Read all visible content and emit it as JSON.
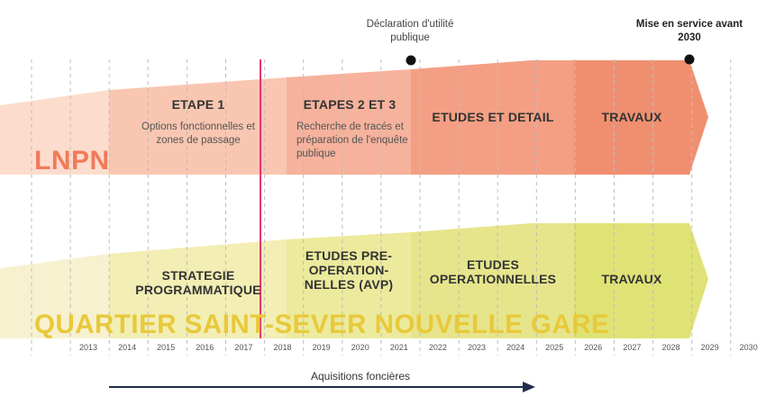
{
  "years": [
    "2013",
    "2014",
    "2015",
    "2016",
    "2017",
    "2018",
    "2019",
    "2020",
    "2021",
    "2022",
    "2023",
    "2024",
    "2025",
    "2026",
    "2027",
    "2028",
    "2029",
    "2030"
  ],
  "milestones": {
    "declaration": "Déclaration d'utilité publique",
    "mise_en_service": "Mise en service avant 2030"
  },
  "lnpn": {
    "label": "LNPN",
    "phases": [
      {
        "title": "ETAPE 1",
        "desc": "Options fonctionnelles et zones de passage"
      },
      {
        "title": "ETAPES 2 ET 3",
        "desc": "Recherche de tracés et préparation de l'enquête publique"
      },
      {
        "title": "ETUDES ET DETAIL",
        "desc": ""
      },
      {
        "title": "TRAVAUX",
        "desc": ""
      }
    ]
  },
  "quartier": {
    "label": "QUARTIER SAINT-SEVER NOUVELLE GARE",
    "phases": [
      {
        "title": "STRATEGIE PROGRAMMATIQUE"
      },
      {
        "title": "ETUDES PRE-OPERATION-NELLES (AVP)"
      },
      {
        "title": "ETUDES OPERATIONNELLES"
      },
      {
        "title": "TRAVAUX"
      }
    ]
  },
  "acquisitions": {
    "label": "Aquisitions foncières"
  },
  "colors": {
    "lnpn_light": "#fbd8c8",
    "lnpn_mid": "#f5b29a",
    "lnpn_dark": "#ef8d6f",
    "lnpn_text": "#f07a5a",
    "quartier_light": "#f6f0cc",
    "quartier_mid": "#ecea96",
    "quartier_dark": "#dde06c",
    "quartier_text": "#e8c93a",
    "today_line": "#e8336e",
    "arrow": "#1f2d4a"
  }
}
